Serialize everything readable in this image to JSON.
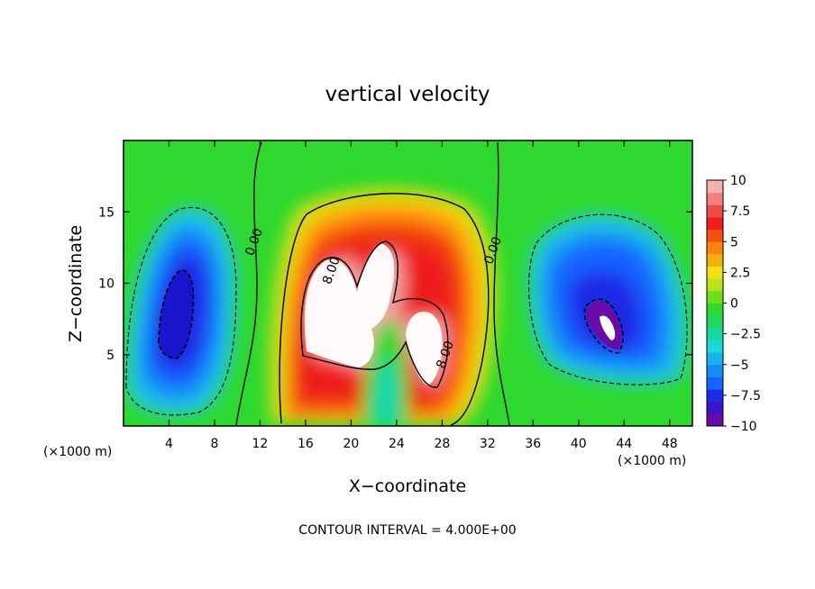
{
  "chart_data": {
    "type": "heatmap",
    "title": "vertical velocity",
    "xlabel": "X−coordinate",
    "ylabel": "Z−coordinate",
    "x_unit": "(×1000 m)",
    "y_unit": "(×1000 m)",
    "x_ticks": [
      4,
      8,
      12,
      16,
      20,
      24,
      28,
      32,
      36,
      40,
      44,
      48
    ],
    "y_ticks": [
      5,
      10,
      15
    ],
    "xlim": [
      0,
      50
    ],
    "ylim": [
      0,
      20
    ],
    "colorbar": {
      "ticks": [
        10,
        7.5,
        5,
        2.5,
        0,
        -2.5,
        -5,
        -7.5,
        -10
      ],
      "tick_labels": [
        "10",
        "7.5",
        "5",
        "2.5",
        "0",
        "−2.5",
        "−5",
        "−7.5",
        "−10"
      ],
      "range": [
        -10,
        10
      ]
    },
    "contour_labels": [
      {
        "text": "0.00",
        "x": 11.8,
        "z": 12.8
      },
      {
        "text": "8.00",
        "x": 18.6,
        "z": 10.8
      },
      {
        "text": "0.00",
        "x": 32.8,
        "z": 12.2
      },
      {
        "text": "8.00",
        "x": 28.6,
        "z": 4.9
      }
    ],
    "features": [
      {
        "name": "updraft",
        "x": 23,
        "z": 10,
        "peak": 12
      },
      {
        "name": "downdraft-left",
        "x": 5.5,
        "z": 8,
        "peak": -8.5
      },
      {
        "name": "downdraft-right",
        "x": 42.5,
        "z": 7,
        "peak": -10
      }
    ],
    "footer": "CONTOUR INTERVAL = 4.000E+00"
  }
}
